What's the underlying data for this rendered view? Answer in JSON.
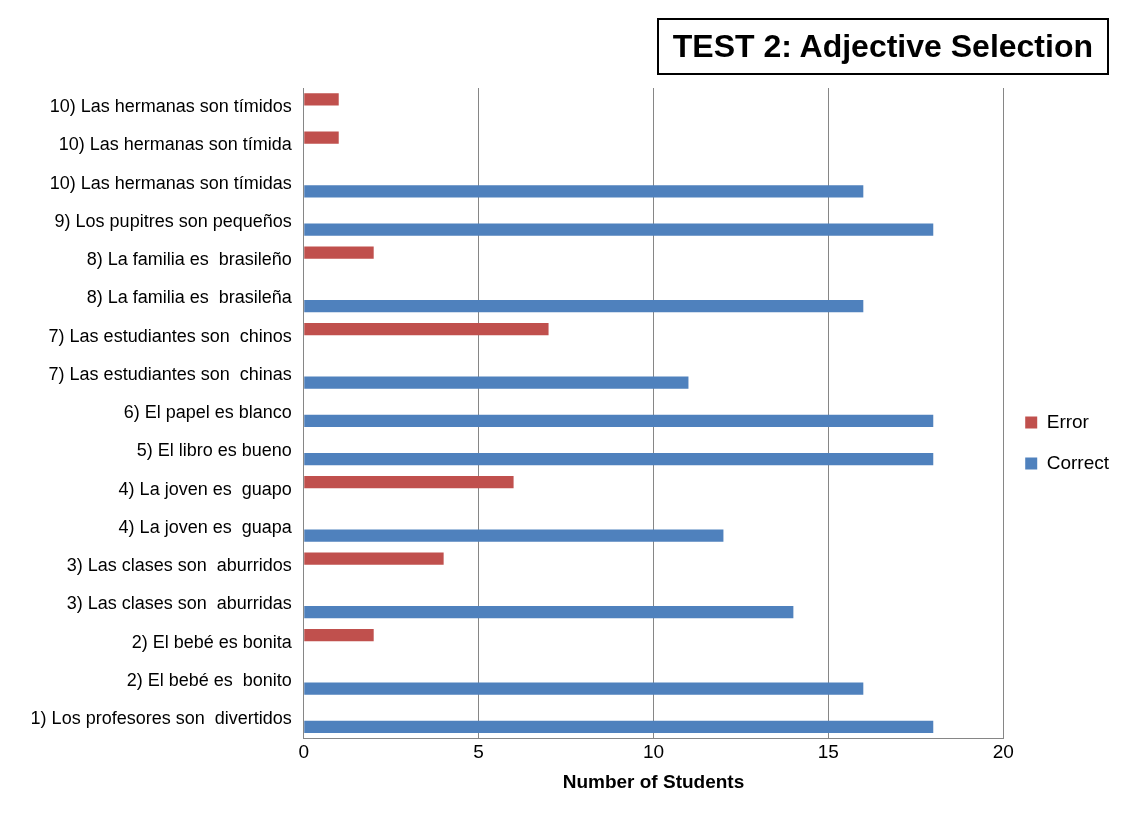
{
  "chart_data": {
    "type": "bar",
    "orientation": "horizontal",
    "title": "TEST 2: Adjective Selection",
    "xlabel": "Number of Students",
    "categories": [
      "10) Las hermanas son tímidos",
      "10) Las hermanas son tímida",
      "10) Las hermanas son tímidas",
      "9) Los pupitres son pequeños",
      "8) La familia es  brasileño",
      "8) La familia es  brasileña",
      "7) Las estudiantes son  chinos",
      "7) Las estudiantes son  chinas",
      "6) El papel es blanco",
      "5) El libro es bueno",
      "4) La joven es  guapo",
      "4) La joven es  guapa",
      "3) Las clases son  aburridos",
      "3) Las clases son  aburridas",
      "2) El bebé es bonita",
      "2) El bebé es  bonito",
      "1) Los profesores son  divertidos"
    ],
    "series": [
      {
        "name": "Error",
        "color": "#c0504d",
        "values": [
          1,
          1,
          null,
          null,
          2,
          null,
          7,
          null,
          null,
          null,
          6,
          null,
          4,
          null,
          2,
          null,
          null
        ]
      },
      {
        "name": "Correct",
        "color": "#4f81bd",
        "values": [
          null,
          null,
          16,
          18,
          null,
          16,
          null,
          11,
          18,
          18,
          null,
          12,
          null,
          14,
          null,
          16,
          18
        ]
      }
    ],
    "xlim": [
      0,
      20
    ],
    "xticks": [
      0,
      5,
      10,
      15,
      20
    ],
    "grid": "x",
    "legend": "right"
  }
}
